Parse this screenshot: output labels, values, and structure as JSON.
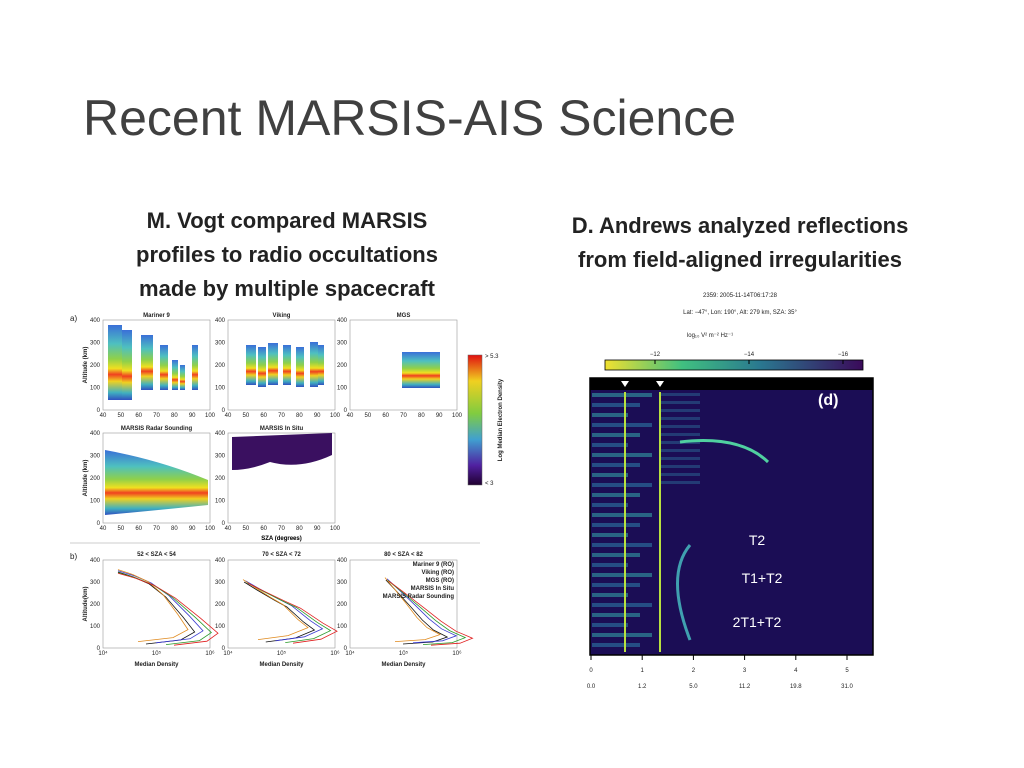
{
  "title": "Recent MARSIS-AIS Science",
  "left": {
    "caption": [
      "M. Vogt compared MARSIS",
      "profiles to radio occultations",
      "made by multiple spacecraft"
    ],
    "figure": {
      "panel_labels": [
        "a)",
        "b)"
      ],
      "map_titles": [
        "Mariner 9",
        "Viking",
        "MGS",
        "MARSIS Radar Sounding",
        "MARSIS In Situ"
      ],
      "altitude_label": "Altitude (km)",
      "sza_label": "SZA (degrees)",
      "altitude_ticks": [
        0,
        100,
        200,
        300,
        400
      ],
      "sza_ticks": [
        40,
        50,
        60,
        70,
        80,
        90,
        100
      ],
      "colorbar": {
        "max_label": "> 5.3",
        "min_label": "< 3",
        "label": "Log Median Electron Density"
      },
      "profile_titles": [
        "52 < SZA < 54",
        "70 < SZA < 72",
        "80 < SZA < 82"
      ],
      "profile_altitude_label": "Altitude(km)",
      "density_label": "Median Density",
      "density_ticks": [
        "10⁴",
        "10⁵",
        "10⁶"
      ],
      "legend": [
        {
          "name": "Mariner 9 (RO)",
          "color": "#111111"
        },
        {
          "name": "Viking (RO)",
          "color": "#3a3ad0"
        },
        {
          "name": "MGS (RO)",
          "color": "#2a9a2a"
        },
        {
          "name": "MARSIS In Situ",
          "color": "#e08a1e"
        },
        {
          "name": "MARSIS Radar Sounding",
          "color": "#e02020"
        }
      ]
    }
  },
  "right": {
    "caption": [
      "D. Andrews analyzed reflections",
      "from field-aligned irregularities"
    ],
    "figure": {
      "header": [
        "2359: 2005-11-14T06:17:28",
        "Lat: −47°, Lon: 190°, Alt: 279 km, SZA: 35°"
      ],
      "colorbar_label": "log₁₀ V² m⁻² Hz⁻¹",
      "colorbar_ticks": [
        {
          "value": -12,
          "label": "−12"
        },
        {
          "value": -14,
          "label": "−14"
        },
        {
          "value": -16,
          "label": "−16"
        }
      ],
      "panel_label": "(d)",
      "echo_labels": [
        "T2",
        "T1+T2",
        "2T1+T2"
      ],
      "x_ticks": [
        0,
        1,
        2,
        3,
        4,
        5
      ],
      "x_tick_sublabels": [
        "0.0",
        "1.2",
        "5.0",
        "11.2",
        "19.8",
        "31.0"
      ]
    }
  }
}
